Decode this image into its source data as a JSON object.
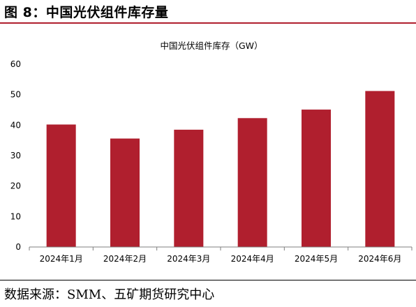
{
  "figure": {
    "title": "图 8：中国光伏组件库存量",
    "source": "数据来源：SMM、五矿期货研究中心"
  },
  "colors": {
    "bar": "#b01f2e",
    "accent_rule": "#b01f2e",
    "axis": "#7f7f7f"
  },
  "chart_data": {
    "type": "bar",
    "title": "中国光伏组件库存（GW）",
    "categories": [
      "2024年1月",
      "2024年2月",
      "2024年3月",
      "2024年4月",
      "2024年5月",
      "2024年6月"
    ],
    "values": [
      40.2,
      35.6,
      38.5,
      42.3,
      45.1,
      51.2
    ],
    "xlabel": "",
    "ylabel": "",
    "ylim": [
      0,
      60
    ],
    "yticks": [
      0,
      10,
      20,
      30,
      40,
      50,
      60
    ],
    "grid": false,
    "legend": "none"
  }
}
